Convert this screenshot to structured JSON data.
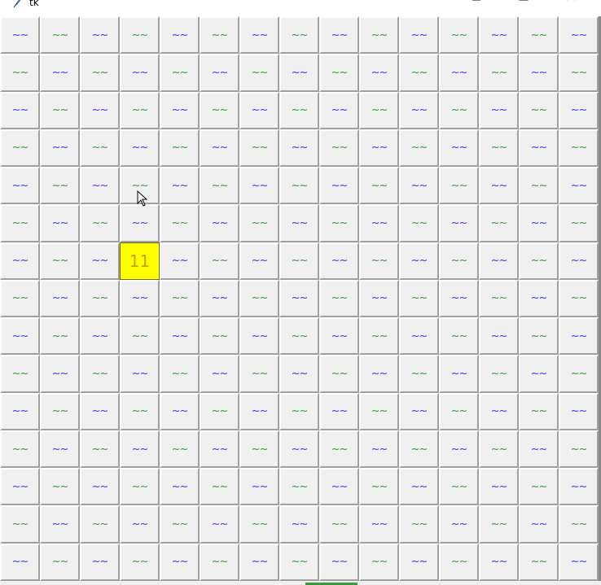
{
  "window": {
    "title": "tk",
    "icon": "feather-icon",
    "controls": [
      "minimize-icon",
      "maximize-icon",
      "close-icon"
    ]
  },
  "board": {
    "rows": 15,
    "cols": 15,
    "hidden_symbol": "~~",
    "hidden_colors": [
      "#3a3af0",
      "#3a9a3a"
    ],
    "revealed_cells": [
      {
        "row": 6,
        "col": 3,
        "label": "11",
        "bg": "#ffff00",
        "color": "#c8a000"
      }
    ]
  },
  "colors": {
    "cell_bg": "#f0f0f0",
    "accent_bar": "#3a9a3a"
  }
}
